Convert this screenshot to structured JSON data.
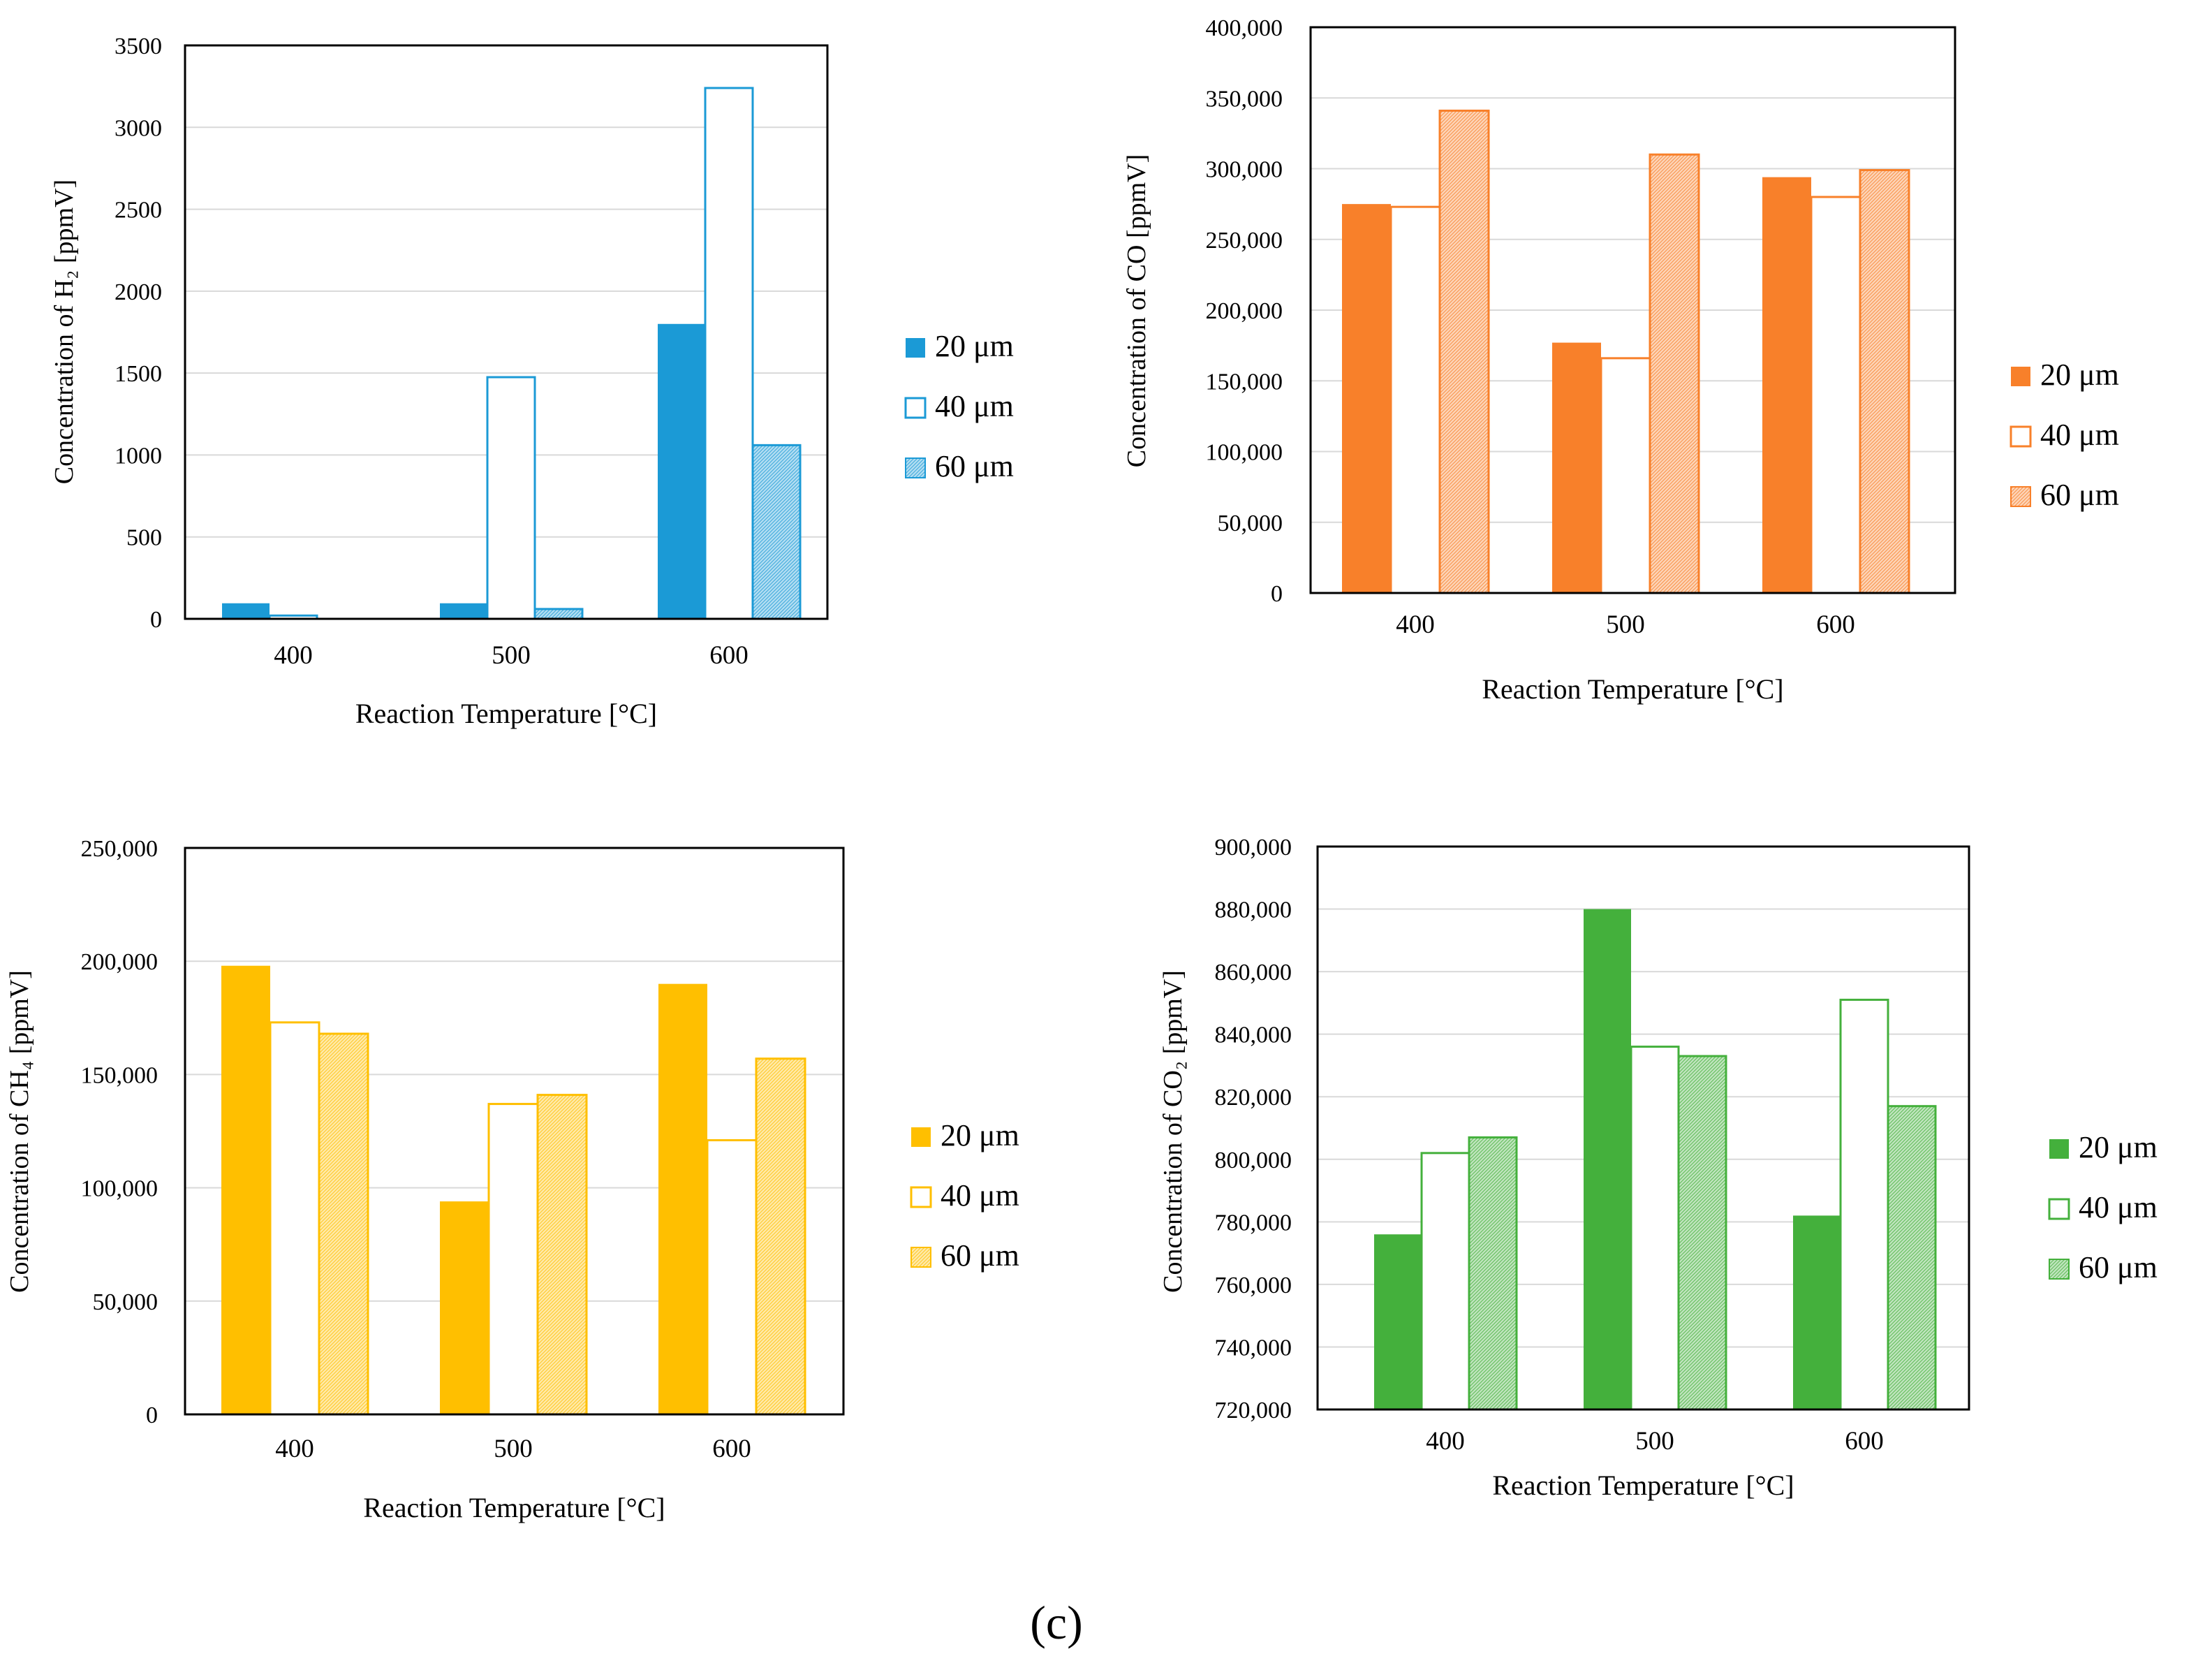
{
  "panel_label": "(c)",
  "chart_data": [
    {
      "id": "h2",
      "type": "bar",
      "title": "",
      "xlabel": "Reaction Temperature [°C]",
      "ylabel": "Concentration of H₂ [ppmV]",
      "categories": [
        "400",
        "500",
        "600"
      ],
      "ylim": [
        0,
        3500
      ],
      "yticks": [
        0,
        500,
        1000,
        1500,
        2000,
        2500,
        3000,
        3500
      ],
      "ytick_labels": [
        "0",
        "500",
        "1000",
        "1500",
        "2000",
        "2500",
        "3000",
        "3500"
      ],
      "grid": true,
      "legend_position": "right",
      "color": "#1b9ad6",
      "series": [
        {
          "name": "20 μm",
          "style": "solid",
          "values": [
            95,
            95,
            1800
          ]
        },
        {
          "name": "40 μm",
          "style": "outline",
          "values": [
            20,
            1475,
            3240
          ]
        },
        {
          "name": "60 μm",
          "style": "hatched",
          "values": [
            0,
            60,
            1060
          ]
        }
      ]
    },
    {
      "id": "co",
      "type": "bar",
      "title": "",
      "xlabel": "Reaction Temperature [°C]",
      "ylabel": "Concentration of CO [ppmV]",
      "categories": [
        "400",
        "500",
        "600"
      ],
      "ylim": [
        0,
        400000
      ],
      "yticks": [
        0,
        50000,
        100000,
        150000,
        200000,
        250000,
        300000,
        350000,
        400000
      ],
      "ytick_labels": [
        "0",
        "50,000",
        "100,000",
        "150,000",
        "200,000",
        "250,000",
        "300,000",
        "350,000",
        "400,000"
      ],
      "grid": true,
      "legend_position": "right",
      "color": "#f8802a",
      "series": [
        {
          "name": "20 μm",
          "style": "solid",
          "values": [
            275000,
            177000,
            294000
          ]
        },
        {
          "name": "40 μm",
          "style": "outline",
          "values": [
            273000,
            166000,
            280000
          ]
        },
        {
          "name": "60 μm",
          "style": "hatched",
          "values": [
            341000,
            310000,
            299000
          ]
        }
      ]
    },
    {
      "id": "ch4",
      "type": "bar",
      "title": "",
      "xlabel": "Reaction Temperature [°C]",
      "ylabel": "Concentration of CH₄ [ppmV]",
      "categories": [
        "400",
        "500",
        "600"
      ],
      "ylim": [
        0,
        250000
      ],
      "yticks": [
        0,
        50000,
        100000,
        150000,
        200000,
        250000
      ],
      "ytick_labels": [
        "0",
        "50,000",
        "100,000",
        "150,000",
        "200,000",
        "250,000"
      ],
      "grid": true,
      "legend_position": "right",
      "color": "#ffbf00",
      "series": [
        {
          "name": "20 μm",
          "style": "solid",
          "values": [
            198000,
            94000,
            190000
          ]
        },
        {
          "name": "40 μm",
          "style": "outline",
          "values": [
            173000,
            137000,
            121000
          ]
        },
        {
          "name": "60 μm",
          "style": "hatched",
          "values": [
            168000,
            141000,
            157000
          ]
        }
      ]
    },
    {
      "id": "co2",
      "type": "bar",
      "title": "",
      "xlabel": "Reaction Temperature [°C]",
      "ylabel": "Concentration of CO₂ [ppmV]",
      "categories": [
        "400",
        "500",
        "600"
      ],
      "ylim": [
        720000,
        900000
      ],
      "yticks": [
        720000,
        740000,
        760000,
        780000,
        800000,
        820000,
        840000,
        860000,
        880000,
        900000
      ],
      "ytick_labels": [
        "720,000",
        "740,000",
        "760,000",
        "780,000",
        "800,000",
        "820,000",
        "840,000",
        "860,000",
        "880,000",
        "900,000"
      ],
      "grid": true,
      "legend_position": "right",
      "color": "#44b03c",
      "series": [
        {
          "name": "20 μm",
          "style": "solid",
          "values": [
            776000,
            880000,
            782000
          ]
        },
        {
          "name": "40 μm",
          "style": "outline",
          "values": [
            802000,
            836000,
            851000
          ]
        },
        {
          "name": "60 μm",
          "style": "hatched",
          "values": [
            807000,
            833000,
            817000
          ]
        }
      ]
    }
  ]
}
